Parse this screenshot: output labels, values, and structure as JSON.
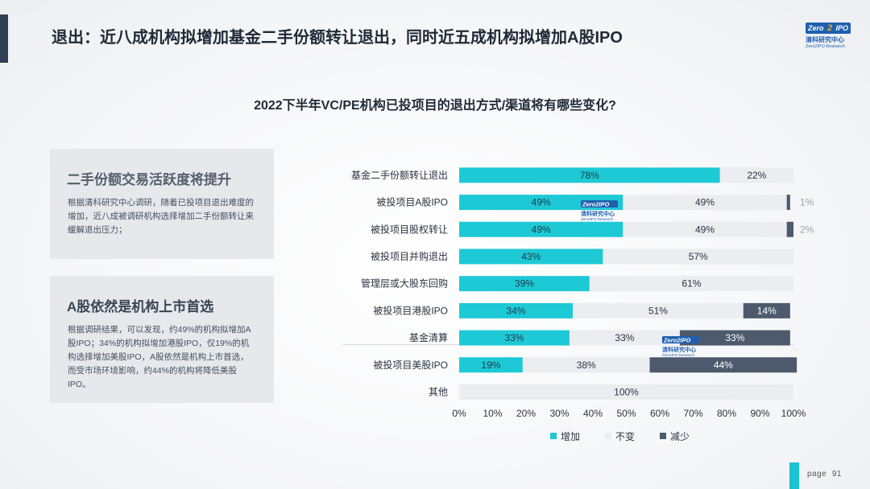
{
  "header": {
    "title": "退出：近八成机构拟增加基金二手份额转让退出，同时近五成机构拟增加A股IPO"
  },
  "logo": {
    "mark_left": "Zero",
    "mark_two": "2",
    "mark_right": "IPO",
    "cn": "清科研究中心",
    "en": "Zero2IPO Research"
  },
  "cards": [
    {
      "heading": "二手份额交易活跃度将提升",
      "body": "根据清科研究中心调研，随着已投项目退出难度的增加，近八成被调研机构选择增加二手份额转让来缓解退出压力；"
    },
    {
      "heading": "A股依然是机构上市首选",
      "body": "根据调研结果，可以发现，约49%的机构拟增加A股IPO；34%的机构拟增加港股IPO，仅19%的机构选择增加美股IPO，A股依然是机构上市首选，而受市场环境影响，约44%的机构将降低美股IPO。"
    }
  ],
  "page": {
    "label": "page",
    "number": "91"
  },
  "chart_data": {
    "type": "bar",
    "orientation": "horizontal",
    "stacked": true,
    "title": "2022下半年VC/PE机构已投项目的退出方式/渠道将有哪些变化?",
    "categories": [
      "基金二手份额转让退出",
      "被投项目A股IPO",
      "被投项目股权转让",
      "被投项目并购退出",
      "管理层或大股东回购",
      "被投项目港股IPO",
      "基金清算",
      "被投项目美股IPO",
      "其他"
    ],
    "series": [
      {
        "name": "增加",
        "color": "#1ec9d6",
        "values": [
          78,
          49,
          49,
          43,
          39,
          34,
          33,
          19,
          0
        ]
      },
      {
        "name": "不变",
        "color": "#ebedf0",
        "values": [
          22,
          49,
          49,
          57,
          61,
          51,
          33,
          38,
          100
        ]
      },
      {
        "name": "减少",
        "color": "#4d5a6d",
        "values": [
          0,
          1,
          2,
          0,
          0,
          14,
          33,
          44,
          0
        ]
      }
    ],
    "xlim": [
      0,
      100
    ],
    "xticks": [
      "0%",
      "10%",
      "20%",
      "30%",
      "40%",
      "50%",
      "60%",
      "70%",
      "80%",
      "90%",
      "100%"
    ],
    "legend_position": "bottom",
    "value_suffix": "%"
  }
}
